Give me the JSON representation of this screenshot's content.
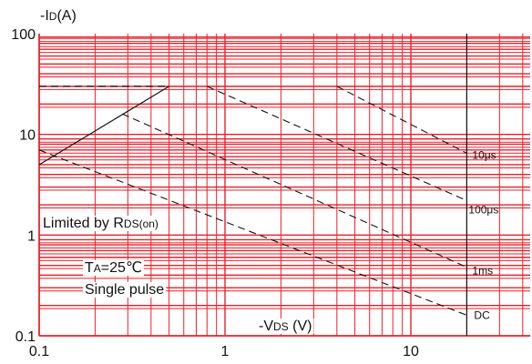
{
  "chart_data": {
    "type": "line",
    "x_scale": "log",
    "y_scale": "log",
    "xlim": [
      0.1,
      50
    ],
    "ylim": [
      0.1,
      100
    ],
    "grid": true,
    "grid_color": "#e8202a",
    "line_color": "#111111",
    "x_ticks": [
      {
        "value": 0.1,
        "label": "0.1"
      },
      {
        "value": 1,
        "label": "1"
      },
      {
        "value": 10,
        "label": "10"
      }
    ],
    "y_ticks": [
      {
        "value": 0.1,
        "label": "0.1"
      },
      {
        "value": 1,
        "label": "1"
      },
      {
        "value": 10,
        "label": "10"
      },
      {
        "value": 100,
        "label": "100"
      }
    ],
    "ylabel": {
      "prefix": "-I",
      "sub": "D",
      "suffix": "(A)"
    },
    "xlabel": {
      "prefix": "-V",
      "sub": "DS",
      "suffix": " (V)"
    },
    "annotations": {
      "limited": {
        "prefix": "Limited by R",
        "sub": "DS(on)"
      },
      "temp": {
        "prefix": "T",
        "sub": "A",
        "suffix": "=25℃"
      },
      "pulse": "Single pulse"
    },
    "rds_limit_line": {
      "x": [
        0.1,
        0.5
      ],
      "y": [
        5,
        30
      ]
    },
    "current_limit": {
      "x": [
        0.1,
        0.5
      ],
      "y": [
        30,
        30
      ]
    },
    "voltage_limit_x": 20,
    "series": [
      {
        "name": "10μs",
        "x": [
          4,
          20
        ],
        "y": [
          30,
          6.5
        ]
      },
      {
        "name": "100μs",
        "x": [
          0.8,
          20
        ],
        "y": [
          30,
          2.2
        ]
      },
      {
        "name": "1ms",
        "x": [
          0.28,
          20
        ],
        "y": [
          16,
          0.48
        ]
      },
      {
        "name": "DC",
        "x": [
          0.1,
          20
        ],
        "y": [
          7,
          0.16
        ]
      }
    ]
  }
}
